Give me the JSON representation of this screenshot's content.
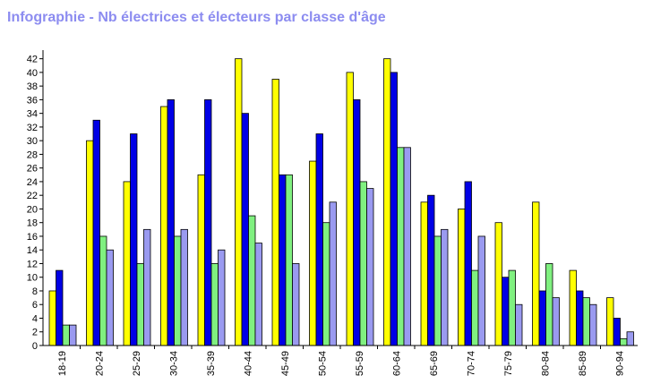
{
  "chart_data": {
    "type": "bar",
    "title": "Infographie - Nb électrices et électeurs par classe d'âge",
    "categories": [
      "18-19",
      "20-24",
      "25-29",
      "30-34",
      "35-39",
      "40-44",
      "45-49",
      "50-54",
      "55-59",
      "60-64",
      "65-69",
      "70-74",
      "75-79",
      "80-84",
      "85-89",
      "90-94"
    ],
    "series": [
      {
        "color": "#ffff00",
        "values": [
          8,
          30,
          24,
          35,
          25,
          42,
          39,
          27,
          40,
          42,
          21,
          20,
          18,
          21,
          11,
          7
        ]
      },
      {
        "color": "#0000e6",
        "values": [
          11,
          33,
          31,
          36,
          36,
          34,
          25,
          31,
          36,
          40,
          22,
          24,
          10,
          8,
          8,
          4
        ]
      },
      {
        "color": "#80f080",
        "values": [
          3,
          16,
          12,
          16,
          12,
          19,
          25,
          18,
          24,
          29,
          16,
          11,
          11,
          12,
          7,
          1
        ]
      },
      {
        "color": "#9a9af0",
        "values": [
          3,
          14,
          17,
          17,
          14,
          15,
          12,
          21,
          23,
          29,
          17,
          16,
          6,
          7,
          6,
          2
        ]
      }
    ],
    "y_ticks": [
      "0",
      "2",
      "4",
      "6",
      "8",
      "10",
      "12",
      "14",
      "16",
      "18",
      "20",
      "22",
      "24",
      "26",
      "28",
      "30",
      "32",
      "34",
      "36",
      "38",
      "40",
      "42"
    ],
    "ylim": [
      0,
      43
    ],
    "grid": false,
    "legend": "none"
  }
}
